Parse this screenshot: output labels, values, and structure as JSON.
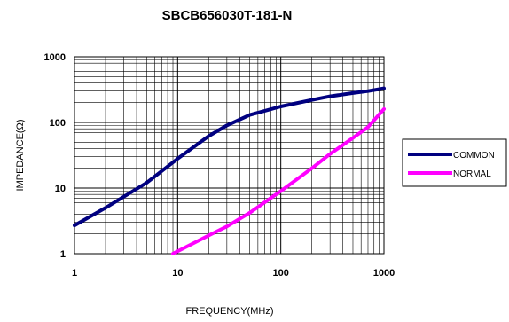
{
  "chart_data": {
    "type": "line",
    "title": "SBCB656030T-181-N",
    "xlabel": "FREQUENCY(MHz)",
    "ylabel": "IMPEDANCE(Ω)",
    "x_scale": "log",
    "y_scale": "log",
    "xlim": [
      1,
      1000
    ],
    "ylim": [
      1,
      1000
    ],
    "x_ticks": [
      "1",
      "10",
      "100",
      "1000"
    ],
    "y_ticks": [
      "1",
      "10",
      "100",
      "1000"
    ],
    "grid": true,
    "legend_position": "right",
    "series": [
      {
        "name": "COMMON",
        "color": "#000080",
        "x": [
          1,
          2,
          5,
          10,
          20,
          30,
          50,
          100,
          200,
          300,
          500,
          700,
          1000
        ],
        "y": [
          2.7,
          5,
          12,
          28,
          62,
          90,
          130,
          175,
          220,
          250,
          280,
          300,
          330
        ]
      },
      {
        "name": "NORMAL",
        "color": "#ff00ff",
        "x": [
          9,
          20,
          30,
          50,
          100,
          200,
          300,
          500,
          700,
          1000
        ],
        "y": [
          1,
          1.9,
          2.6,
          4.2,
          9,
          20,
          33,
          58,
          85,
          160
        ]
      }
    ]
  }
}
